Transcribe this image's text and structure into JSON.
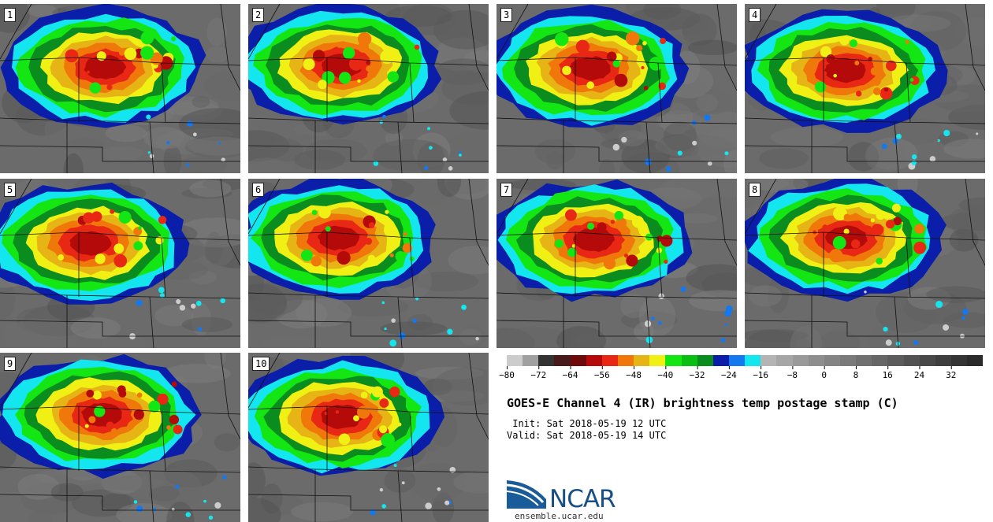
{
  "panels": [
    {
      "label": "1",
      "seed": 11
    },
    {
      "label": "2",
      "seed": 23
    },
    {
      "label": "3",
      "seed": 37
    },
    {
      "label": "4",
      "seed": 41
    },
    {
      "label": "5",
      "seed": 53
    },
    {
      "label": "6",
      "seed": 67
    },
    {
      "label": "7",
      "seed": 71
    },
    {
      "label": "8",
      "seed": 83
    },
    {
      "label": "9",
      "seed": 97
    },
    {
      "label": "10",
      "seed": 101
    }
  ],
  "colorbar": {
    "colors": [
      "#cccccc",
      "#a0a0a0",
      "#333333",
      "#4a1a1a",
      "#6e0a0a",
      "#b40a0a",
      "#e82814",
      "#f0780a",
      "#e6b414",
      "#f0f014",
      "#14e614",
      "#0abe14",
      "#0a8c1e",
      "#0a1eaa",
      "#1478f0",
      "#14e6f0",
      "#b4b4b4",
      "#a6a6a6",
      "#9a9a9a",
      "#8e8e8e",
      "#848484",
      "#7a7a7a",
      "#707070",
      "#666666",
      "#5c5c5c",
      "#525252",
      "#484848",
      "#3e3e3e",
      "#343434",
      "#2a2a2a"
    ],
    "tick_labels": [
      "−80",
      "−72",
      "−64",
      "−56",
      "−48",
      "−40",
      "−32",
      "−24",
      "−16",
      "−8",
      "0",
      "8",
      "16",
      "24",
      "32"
    ]
  },
  "title": "GOES-E Channel 4 (IR) brightness temp postage stamp (C)",
  "init_text": " Init: Sat 2018-05-19 12 UTC",
  "valid_text": "Valid: Sat 2018-05-19 14 UTC",
  "logo_text": "NCAR",
  "url_text": "ensemble.ucar.edu",
  "accent": {
    "logo_blue": "#1a4f86"
  }
}
